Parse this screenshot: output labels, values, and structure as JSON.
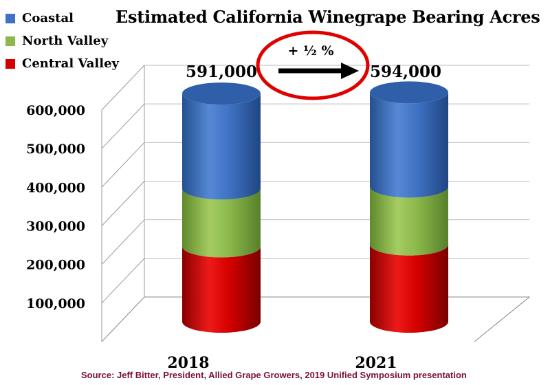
{
  "chart_data": {
    "type": "bar",
    "stacked": true,
    "title": "Estimated California Winegrape Bearing Acres",
    "categories": [
      "2018",
      "2021"
    ],
    "series": [
      {
        "name": "Central Valley",
        "color": "#d40000",
        "values": [
          195000,
          200000
        ]
      },
      {
        "name": "North Valley",
        "color": "#8cb84c",
        "values": [
          150000,
          150000
        ]
      },
      {
        "name": "Coastal",
        "color": "#3f72c4",
        "values": [
          246000,
          244000
        ]
      }
    ],
    "legend_order": [
      "Coastal",
      "North Valley",
      "Central Valley"
    ],
    "totals": [
      "591,000",
      "594,000"
    ],
    "annotation": "+ ½ %",
    "ylim": [
      0,
      600000
    ],
    "yticks": [
      "100,000",
      "200,000",
      "300,000",
      "400,000",
      "500,000",
      "600,000"
    ],
    "grid": true,
    "legend_position": "top-left"
  },
  "source": "Source: Jeff Bitter, President, Allied Grape Growers, 2019 Unified Symposium presentation"
}
